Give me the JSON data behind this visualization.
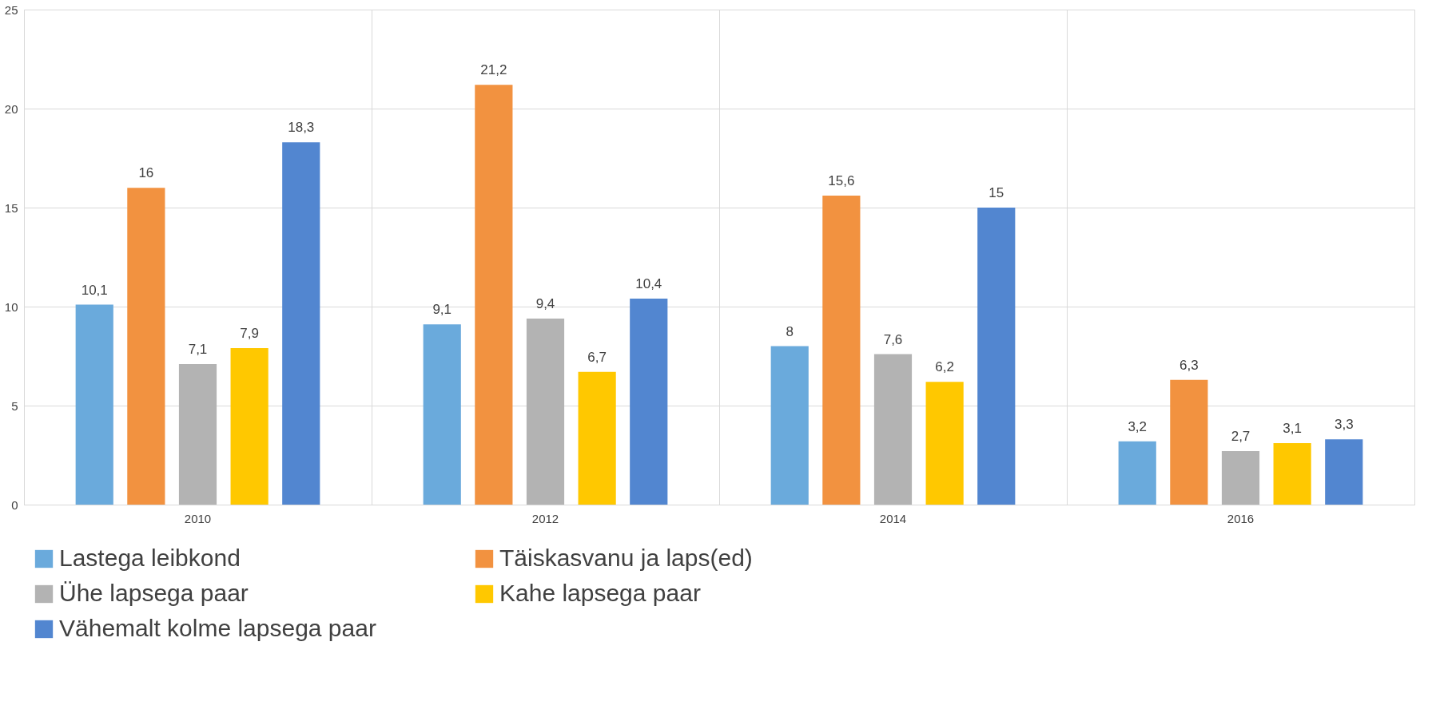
{
  "chart_data": {
    "type": "bar",
    "categories": [
      "2010",
      "2012",
      "2014",
      "2016"
    ],
    "series": [
      {
        "name": "Lastega leibkond",
        "color": "#6aaadc",
        "values": [
          10.1,
          9.1,
          8,
          3.2
        ],
        "value_labels": [
          "10,1",
          "9,1",
          "8",
          "3,2"
        ]
      },
      {
        "name": "Täiskasvanu ja laps(ed)",
        "color": "#f29240",
        "values": [
          16,
          21.2,
          15.6,
          6.3
        ],
        "value_labels": [
          "16",
          "21,2",
          "15,6",
          "6,3"
        ]
      },
      {
        "name": "Ühe lapsega paar",
        "color": "#b3b3b3",
        "values": [
          7.1,
          9.4,
          7.6,
          2.7
        ],
        "value_labels": [
          "7,1",
          "9,4",
          "7,6",
          "2,7"
        ]
      },
      {
        "name": "Kahe lapsega paar",
        "color": "#ffc800",
        "values": [
          7.9,
          6.7,
          6.2,
          3.1
        ],
        "value_labels": [
          "7,9",
          "6,7",
          "6,2",
          "3,1"
        ]
      },
      {
        "name": "Vähemalt kolme lapsega paar",
        "color": "#5286d0",
        "values": [
          18.3,
          10.4,
          15,
          3.3
        ],
        "value_labels": [
          "18,3",
          "10,4",
          "15",
          "3,3"
        ]
      }
    ],
    "ylim": [
      0,
      25
    ],
    "yticks": [
      0,
      5,
      10,
      15,
      20,
      25
    ],
    "grid": true,
    "legend": "bottom"
  }
}
